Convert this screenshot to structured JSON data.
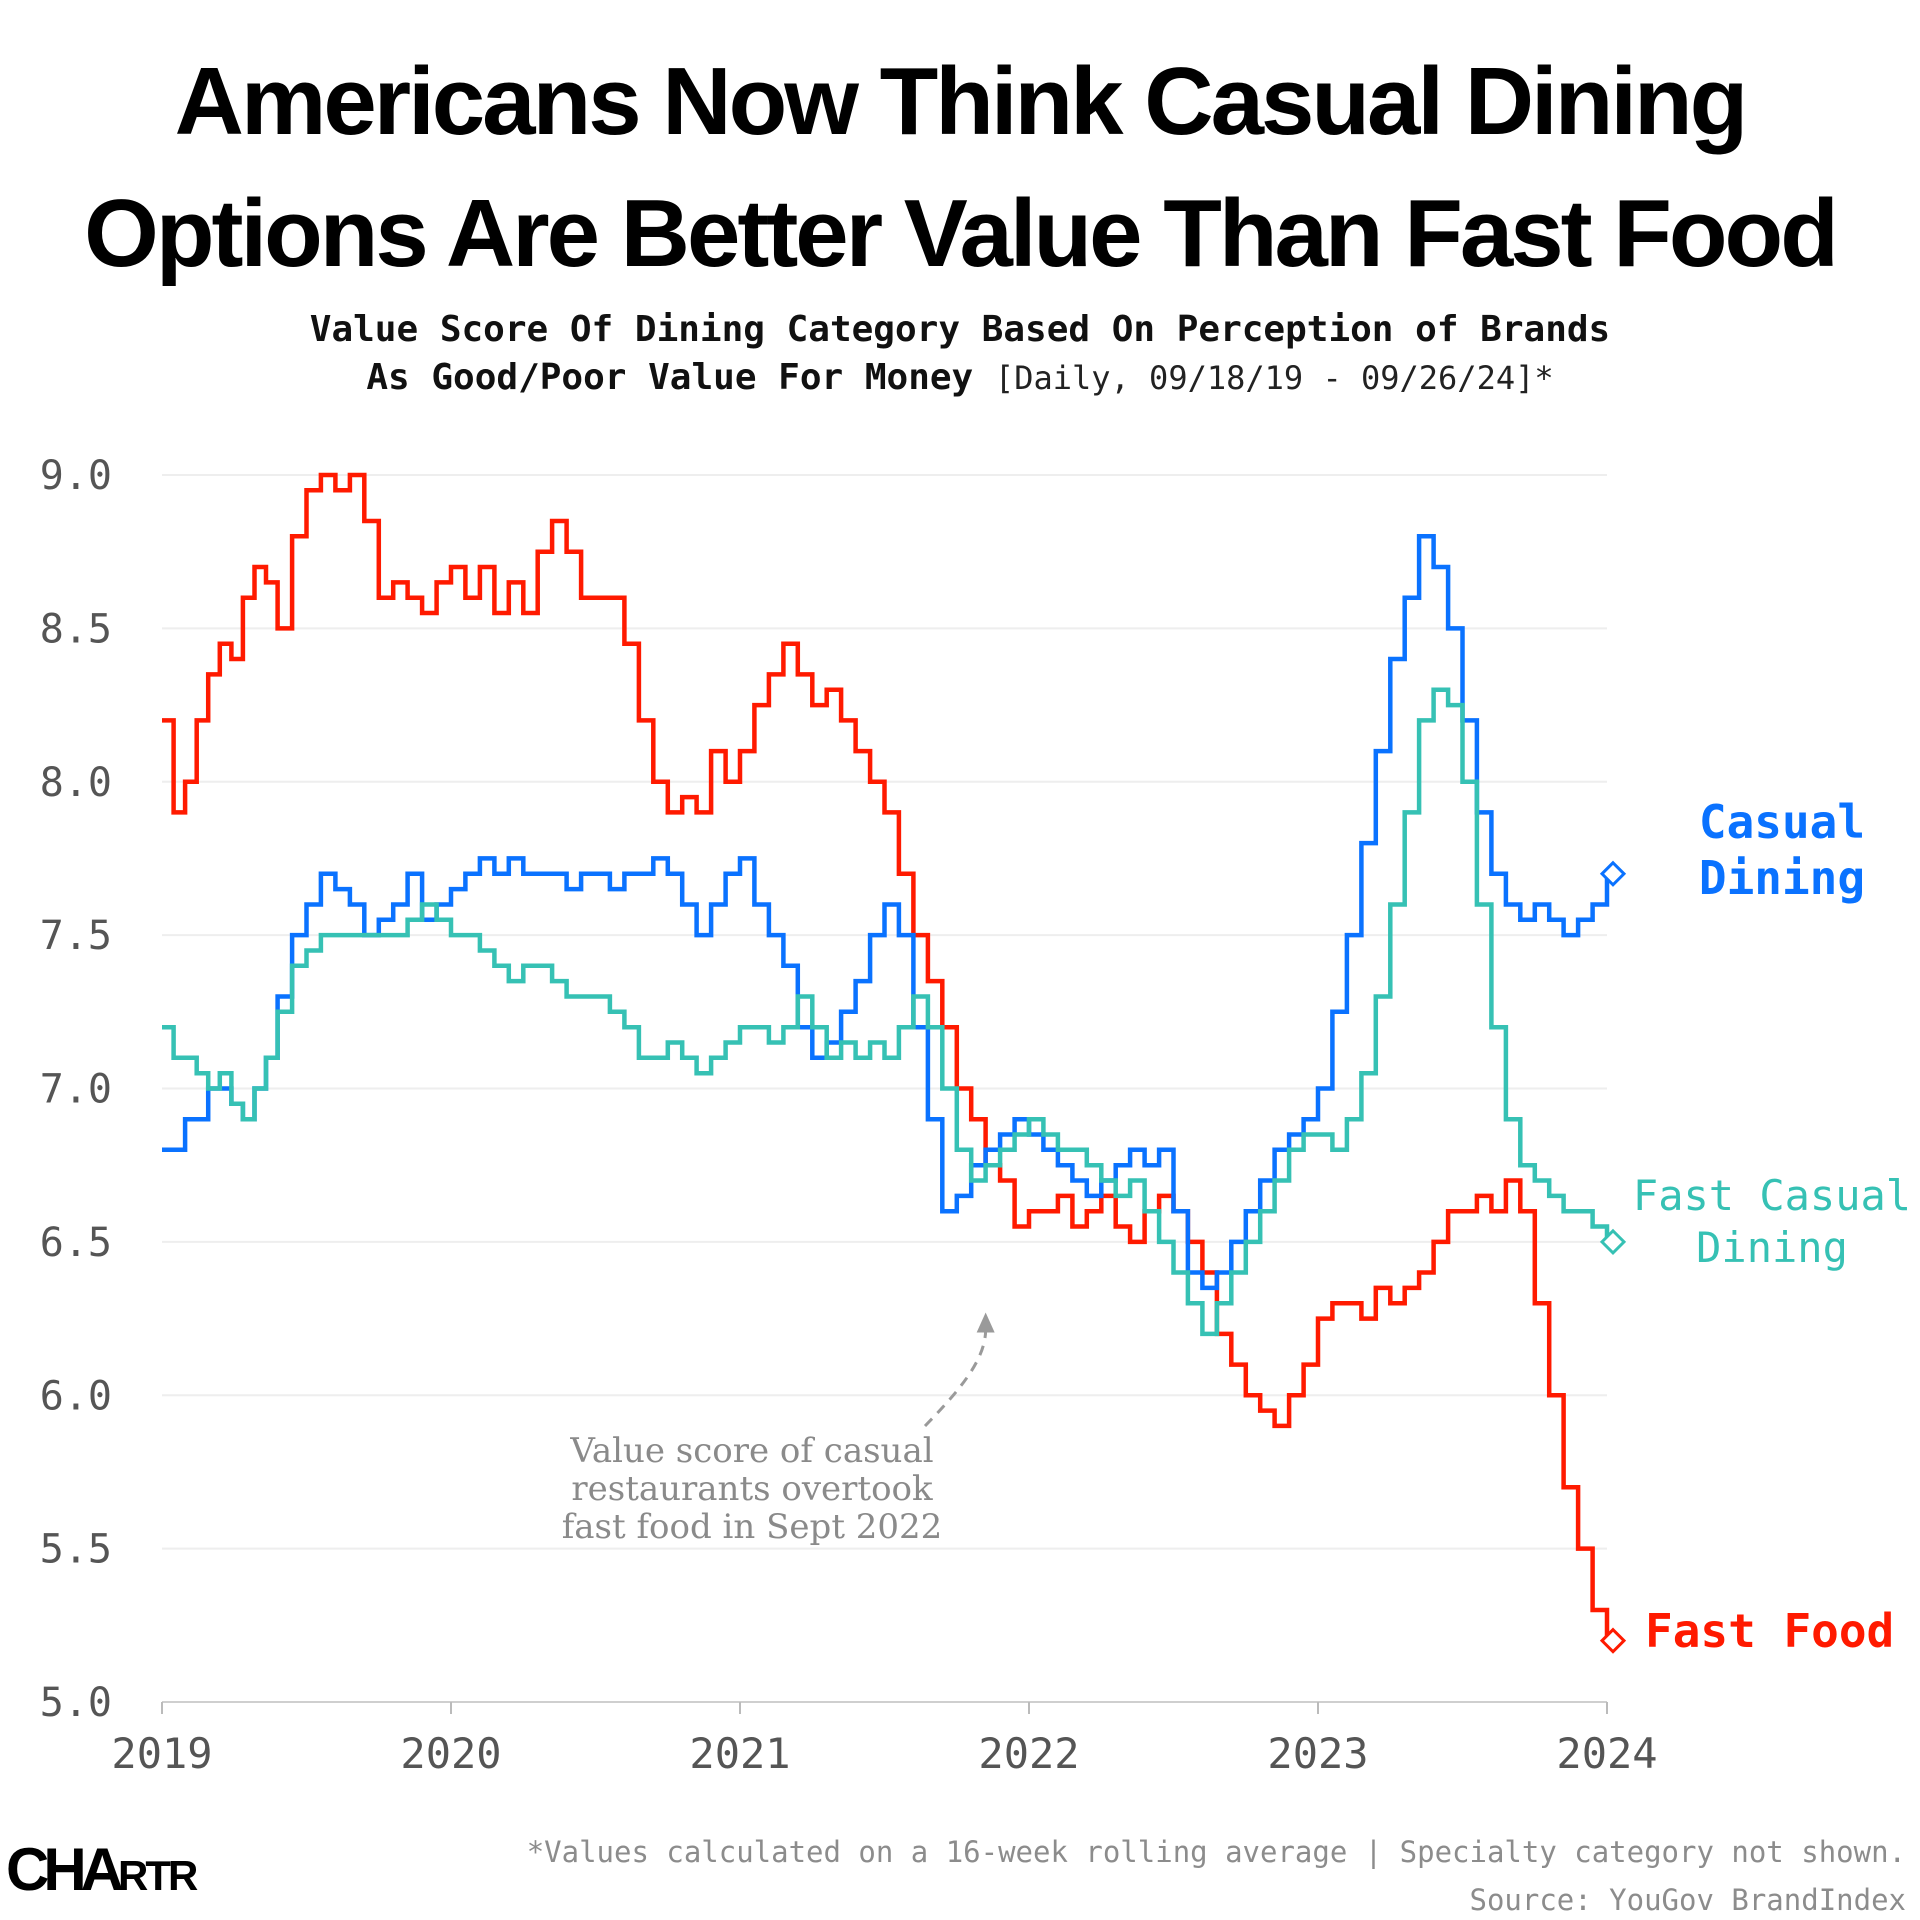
{
  "title_line_1": "Americans Now Think Casual Dining",
  "title_line_2": "Options Are Better Value Than Fast Food",
  "subtitle_line_1": "Value Score Of Dining Category Based On Perception of Brands",
  "subtitle_line_2": "As Good/Poor Value For Money",
  "date_range": "[Daily, 09/18/19 - 09/26/24]*",
  "footnote": "*Values calculated on a 16-week rolling average | Specialty category not shown.",
  "source": "Source: YouGov BrandIndex",
  "logo": {
    "big": "CHA",
    "small": "RTR"
  },
  "colors": {
    "fast_food": "#ff1a00",
    "casual_dining": "#0a72ff",
    "fast_casual": "#36c1b4",
    "grid": "#eeeeee",
    "axis": "#555555"
  },
  "chart_data": {
    "type": "line",
    "title": "Americans Now Think Casual Dining Options Are Better Value Than Fast Food",
    "xlabel": "",
    "ylabel": "",
    "xlim": [
      2019,
      2024
    ],
    "ylim": [
      5.0,
      9.0
    ],
    "x_ticks": [
      "2019",
      "2020",
      "2021",
      "2022",
      "2023",
      "2024"
    ],
    "y_ticks": [
      "5.0",
      "5.5",
      "6.0",
      "6.5",
      "7.0",
      "7.5",
      "8.0",
      "8.5",
      "9.0"
    ],
    "series": [
      {
        "name": "Fast Food",
        "label_lines": [
          "Fast Food"
        ],
        "color": "#ff1a00",
        "end_value": 5.2,
        "x": [
          2019.0,
          2019.04,
          2019.08,
          2019.12,
          2019.16,
          2019.2,
          2019.24,
          2019.28,
          2019.32,
          2019.36,
          2019.4,
          2019.45,
          2019.5,
          2019.55,
          2019.6,
          2019.65,
          2019.7,
          2019.75,
          2019.8,
          2019.85,
          2019.9,
          2019.95,
          2020.0,
          2020.05,
          2020.1,
          2020.15,
          2020.2,
          2020.25,
          2020.3,
          2020.35,
          2020.4,
          2020.45,
          2020.5,
          2020.55,
          2020.6,
          2020.65,
          2020.7,
          2020.75,
          2020.8,
          2020.85,
          2020.9,
          2020.95,
          2021.0,
          2021.05,
          2021.1,
          2021.15,
          2021.2,
          2021.25,
          2021.3,
          2021.35,
          2021.4,
          2021.45,
          2021.5,
          2021.55,
          2021.6,
          2021.65,
          2021.7,
          2021.75,
          2021.8,
          2021.85,
          2021.9,
          2021.95,
          2022.0,
          2022.05,
          2022.1,
          2022.15,
          2022.2,
          2022.25,
          2022.3,
          2022.35,
          2022.4,
          2022.45,
          2022.5,
          2022.55,
          2022.6,
          2022.65,
          2022.7,
          2022.75,
          2022.8,
          2022.85,
          2022.9,
          2022.95,
          2023.0,
          2023.05,
          2023.1,
          2023.15,
          2023.2,
          2023.25,
          2023.3,
          2023.35,
          2023.4,
          2023.45,
          2023.5,
          2023.55,
          2023.6,
          2023.65,
          2023.7,
          2023.75,
          2023.8,
          2023.85,
          2023.9,
          2023.95,
          2024.0
        ],
        "values": [
          8.2,
          7.9,
          8.0,
          8.2,
          8.35,
          8.45,
          8.4,
          8.6,
          8.7,
          8.65,
          8.5,
          8.8,
          8.95,
          9.0,
          8.95,
          9.0,
          8.85,
          8.6,
          8.65,
          8.6,
          8.55,
          8.65,
          8.7,
          8.6,
          8.7,
          8.55,
          8.65,
          8.55,
          8.75,
          8.85,
          8.75,
          8.6,
          8.6,
          8.6,
          8.45,
          8.2,
          8.0,
          7.9,
          7.95,
          7.9,
          8.1,
          8.0,
          8.1,
          8.25,
          8.35,
          8.45,
          8.35,
          8.25,
          8.3,
          8.2,
          8.1,
          8.0,
          7.9,
          7.7,
          7.5,
          7.35,
          7.2,
          7.0,
          6.9,
          6.75,
          6.7,
          6.55,
          6.6,
          6.6,
          6.65,
          6.55,
          6.6,
          6.65,
          6.55,
          6.5,
          6.6,
          6.65,
          6.6,
          6.5,
          6.4,
          6.2,
          6.1,
          6.0,
          5.95,
          5.9,
          6.0,
          6.1,
          6.25,
          6.3,
          6.3,
          6.25,
          6.35,
          6.3,
          6.35,
          6.4,
          6.5,
          6.6,
          6.6,
          6.65,
          6.6,
          6.7,
          6.6,
          6.3,
          6.0,
          5.7,
          5.5,
          5.3,
          5.2
        ]
      },
      {
        "name": "Casual Dining",
        "label_lines": [
          "Casual",
          "Dining"
        ],
        "color": "#0a72ff",
        "end_value": 7.7,
        "x": [
          2019.0,
          2019.04,
          2019.08,
          2019.12,
          2019.16,
          2019.2,
          2019.24,
          2019.28,
          2019.32,
          2019.36,
          2019.4,
          2019.45,
          2019.5,
          2019.55,
          2019.6,
          2019.65,
          2019.7,
          2019.75,
          2019.8,
          2019.85,
          2019.9,
          2019.95,
          2020.0,
          2020.05,
          2020.1,
          2020.15,
          2020.2,
          2020.25,
          2020.3,
          2020.35,
          2020.4,
          2020.45,
          2020.5,
          2020.55,
          2020.6,
          2020.65,
          2020.7,
          2020.75,
          2020.8,
          2020.85,
          2020.9,
          2020.95,
          2021.0,
          2021.05,
          2021.1,
          2021.15,
          2021.2,
          2021.25,
          2021.3,
          2021.35,
          2021.4,
          2021.45,
          2021.5,
          2021.55,
          2021.6,
          2021.65,
          2021.7,
          2021.75,
          2021.8,
          2021.85,
          2021.9,
          2021.95,
          2022.0,
          2022.05,
          2022.1,
          2022.15,
          2022.2,
          2022.25,
          2022.3,
          2022.35,
          2022.4,
          2022.45,
          2022.5,
          2022.55,
          2022.6,
          2022.65,
          2022.7,
          2022.75,
          2022.8,
          2022.85,
          2022.9,
          2022.95,
          2023.0,
          2023.05,
          2023.1,
          2023.15,
          2023.2,
          2023.25,
          2023.3,
          2023.35,
          2023.4,
          2023.45,
          2023.5,
          2023.55,
          2023.6,
          2023.65,
          2023.7,
          2023.75,
          2023.8,
          2023.85,
          2023.9,
          2023.95,
          2024.0
        ],
        "values": [
          6.8,
          6.8,
          6.9,
          6.9,
          7.0,
          7.0,
          6.95,
          6.9,
          7.0,
          7.1,
          7.3,
          7.5,
          7.6,
          7.7,
          7.65,
          7.6,
          7.5,
          7.55,
          7.6,
          7.7,
          7.55,
          7.6,
          7.65,
          7.7,
          7.75,
          7.7,
          7.75,
          7.7,
          7.7,
          7.7,
          7.65,
          7.7,
          7.7,
          7.65,
          7.7,
          7.7,
          7.75,
          7.7,
          7.6,
          7.5,
          7.6,
          7.7,
          7.75,
          7.6,
          7.5,
          7.4,
          7.2,
          7.1,
          7.15,
          7.25,
          7.35,
          7.5,
          7.6,
          7.5,
          7.2,
          6.9,
          6.6,
          6.65,
          6.75,
          6.8,
          6.85,
          6.9,
          6.85,
          6.8,
          6.75,
          6.7,
          6.65,
          6.7,
          6.75,
          6.8,
          6.75,
          6.8,
          6.6,
          6.4,
          6.35,
          6.4,
          6.5,
          6.6,
          6.7,
          6.8,
          6.85,
          6.9,
          7.0,
          7.25,
          7.5,
          7.8,
          8.1,
          8.4,
          8.6,
          8.8,
          8.7,
          8.5,
          8.2,
          7.9,
          7.7,
          7.6,
          7.55,
          7.6,
          7.55,
          7.5,
          7.55,
          7.6,
          7.7
        ]
      },
      {
        "name": "Fast Casual Dining",
        "label_lines": [
          "Fast Casual",
          "Dining"
        ],
        "color": "#36c1b4",
        "end_value": 6.5,
        "x": [
          2019.0,
          2019.04,
          2019.08,
          2019.12,
          2019.16,
          2019.2,
          2019.24,
          2019.28,
          2019.32,
          2019.36,
          2019.4,
          2019.45,
          2019.5,
          2019.55,
          2019.6,
          2019.65,
          2019.7,
          2019.75,
          2019.8,
          2019.85,
          2019.9,
          2019.95,
          2020.0,
          2020.05,
          2020.1,
          2020.15,
          2020.2,
          2020.25,
          2020.3,
          2020.35,
          2020.4,
          2020.45,
          2020.5,
          2020.55,
          2020.6,
          2020.65,
          2020.7,
          2020.75,
          2020.8,
          2020.85,
          2020.9,
          2020.95,
          2021.0,
          2021.05,
          2021.1,
          2021.15,
          2021.2,
          2021.25,
          2021.3,
          2021.35,
          2021.4,
          2021.45,
          2021.5,
          2021.55,
          2021.6,
          2021.65,
          2021.7,
          2021.75,
          2021.8,
          2021.85,
          2021.9,
          2021.95,
          2022.0,
          2022.05,
          2022.1,
          2022.15,
          2022.2,
          2022.25,
          2022.3,
          2022.35,
          2022.4,
          2022.45,
          2022.5,
          2022.55,
          2022.6,
          2022.65,
          2022.7,
          2022.75,
          2022.8,
          2022.85,
          2022.9,
          2022.95,
          2023.0,
          2023.05,
          2023.1,
          2023.15,
          2023.2,
          2023.25,
          2023.3,
          2023.35,
          2023.4,
          2023.45,
          2023.5,
          2023.55,
          2023.6,
          2023.65,
          2023.7,
          2023.75,
          2023.8,
          2023.85,
          2023.9,
          2023.95,
          2024.0
        ],
        "values": [
          7.2,
          7.1,
          7.1,
          7.05,
          7.0,
          7.05,
          6.95,
          6.9,
          7.0,
          7.1,
          7.25,
          7.4,
          7.45,
          7.5,
          7.5,
          7.5,
          7.5,
          7.5,
          7.5,
          7.55,
          7.6,
          7.55,
          7.5,
          7.5,
          7.45,
          7.4,
          7.35,
          7.4,
          7.4,
          7.35,
          7.3,
          7.3,
          7.3,
          7.25,
          7.2,
          7.1,
          7.1,
          7.15,
          7.1,
          7.05,
          7.1,
          7.15,
          7.2,
          7.2,
          7.15,
          7.2,
          7.3,
          7.2,
          7.1,
          7.15,
          7.1,
          7.15,
          7.1,
          7.2,
          7.3,
          7.2,
          7.0,
          6.8,
          6.7,
          6.75,
          6.8,
          6.85,
          6.9,
          6.85,
          6.8,
          6.8,
          6.75,
          6.7,
          6.65,
          6.7,
          6.6,
          6.5,
          6.4,
          6.3,
          6.2,
          6.3,
          6.4,
          6.5,
          6.6,
          6.7,
          6.8,
          6.85,
          6.85,
          6.8,
          6.9,
          7.05,
          7.3,
          7.6,
          7.9,
          8.2,
          8.3,
          8.25,
          8.0,
          7.6,
          7.2,
          6.9,
          6.75,
          6.7,
          6.65,
          6.6,
          6.6,
          6.55,
          6.5
        ]
      }
    ],
    "annotation": {
      "lines": [
        "Value score of casual",
        "restaurants overtook",
        "fast food in Sept 2022"
      ],
      "points_to_x": 2021.85,
      "points_to_y": 6.4
    }
  }
}
